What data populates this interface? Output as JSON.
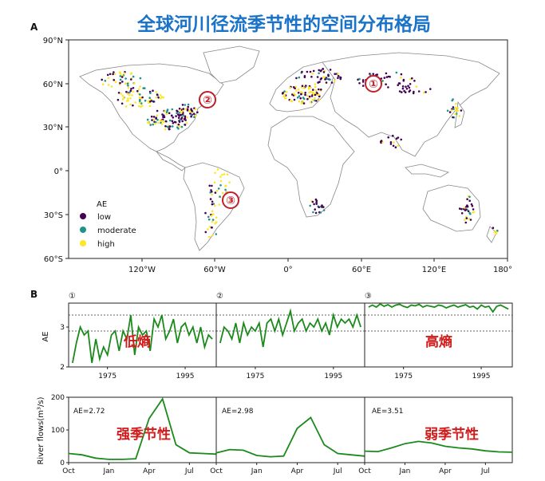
{
  "title": "全球河川径流季节性的空间分布格局",
  "panel_a": "A",
  "panel_b": "B",
  "colors": {
    "low": "#440154",
    "moderate": "#21918c",
    "high": "#fde725",
    "line": "#1a8a1a",
    "title": "#1a73c8",
    "annot": "#d11a1a"
  },
  "map": {
    "lat_ticks": [
      "90°N",
      "60°N",
      "30°N",
      "0°",
      "30°S",
      "60°S"
    ],
    "lon_ticks": [
      "120°W",
      "60°W",
      "0°",
      "60°E",
      "120°E",
      "180°"
    ],
    "markers": [
      "①",
      "②",
      "③"
    ],
    "legend": {
      "title": "AE",
      "items": [
        "low",
        "moderate",
        "high"
      ]
    }
  },
  "chart_data": [
    {
      "type": "line",
      "panel": "①",
      "ylabel": "AE",
      "ylim": [
        2,
        3.6
      ],
      "yticks": [
        2,
        3
      ],
      "xlim": [
        1965,
        2003
      ],
      "xticks": [
        "1975",
        "1995"
      ],
      "reference_lines": [
        3.3,
        2.9
      ],
      "annotation": "低熵",
      "series": [
        {
          "x": [
            1966,
            1967,
            1968,
            1969,
            1970,
            1971,
            1972,
            1973,
            1974,
            1975,
            1976,
            1977,
            1978,
            1979,
            1980,
            1981,
            1982,
            1983,
            1984,
            1985,
            1986,
            1987,
            1988,
            1989,
            1990,
            1991,
            1992,
            1993,
            1994,
            1995,
            1996,
            1997,
            1998,
            1999,
            2000,
            2001,
            2002
          ],
          "values": [
            2.1,
            2.6,
            3.0,
            2.8,
            2.9,
            2.1,
            2.7,
            2.2,
            2.5,
            2.3,
            2.8,
            2.9,
            2.4,
            2.9,
            2.7,
            3.3,
            2.3,
            3.0,
            2.8,
            2.9,
            2.4,
            3.2,
            3.0,
            3.3,
            2.7,
            2.9,
            3.2,
            2.6,
            3.0,
            3.1,
            2.8,
            3.0,
            2.6,
            3.0,
            2.5,
            2.8,
            2.7
          ]
        }
      ]
    },
    {
      "type": "line",
      "panel": "②",
      "ylim": [
        2,
        3.6
      ],
      "xlim": [
        1965,
        2003
      ],
      "xticks": [
        "1975",
        "1995"
      ],
      "reference_lines": [
        3.3,
        2.9
      ],
      "series": [
        {
          "x": [
            1966,
            1967,
            1968,
            1969,
            1970,
            1971,
            1972,
            1973,
            1974,
            1975,
            1976,
            1977,
            1978,
            1979,
            1980,
            1981,
            1982,
            1983,
            1984,
            1985,
            1986,
            1987,
            1988,
            1989,
            1990,
            1991,
            1992,
            1993,
            1994,
            1995,
            1996,
            1997,
            1998,
            1999,
            2000,
            2001,
            2002
          ],
          "values": [
            2.6,
            3.0,
            2.9,
            2.7,
            3.1,
            2.6,
            3.1,
            2.8,
            3.0,
            2.9,
            3.1,
            2.5,
            3.1,
            3.2,
            2.9,
            3.2,
            2.8,
            3.1,
            3.4,
            2.9,
            3.1,
            3.2,
            2.9,
            3.1,
            3.0,
            3.2,
            2.9,
            3.1,
            2.8,
            3.3,
            3.0,
            3.2,
            3.1,
            3.2,
            3.0,
            3.3,
            3.0
          ]
        }
      ]
    },
    {
      "type": "line",
      "panel": "③",
      "ylim": [
        2,
        3.6
      ],
      "xlim": [
        1965,
        2003
      ],
      "xticks": [
        "1975",
        "1995"
      ],
      "reference_lines": [
        3.3,
        2.9
      ],
      "annotation": "高熵",
      "series": [
        {
          "x": [
            1966,
            1967,
            1968,
            1969,
            1970,
            1971,
            1972,
            1973,
            1974,
            1975,
            1976,
            1977,
            1978,
            1979,
            1980,
            1981,
            1982,
            1983,
            1984,
            1985,
            1986,
            1987,
            1988,
            1989,
            1990,
            1991,
            1992,
            1993,
            1994,
            1995,
            1996,
            1997,
            1998,
            1999,
            2000,
            2001,
            2002
          ],
          "values": [
            3.5,
            3.55,
            3.5,
            3.58,
            3.52,
            3.56,
            3.5,
            3.55,
            3.57,
            3.52,
            3.49,
            3.55,
            3.53,
            3.57,
            3.5,
            3.54,
            3.52,
            3.5,
            3.55,
            3.53,
            3.48,
            3.52,
            3.55,
            3.5,
            3.53,
            3.56,
            3.5,
            3.52,
            3.45,
            3.55,
            3.5,
            3.52,
            3.38,
            3.52,
            3.55,
            3.5,
            3.45
          ]
        }
      ]
    },
    {
      "type": "line",
      "panel": "①",
      "ylabel": "River flows(m³/s)",
      "ylim": [
        0,
        200
      ],
      "yticks": [
        0,
        100,
        200
      ],
      "months": [
        "Oct",
        "Nov",
        "Dec",
        "Jan",
        "Feb",
        "Mar",
        "Apr",
        "May",
        "Jun",
        "Jul",
        "Aug",
        "Sep"
      ],
      "xticks": [
        "Oct",
        "Jan",
        "Apr",
        "Jul"
      ],
      "label": "AE=2.72",
      "annotation": "强季节性",
      "series": [
        {
          "values": [
            28,
            24,
            14,
            10,
            10,
            12,
            135,
            195,
            55,
            30,
            28,
            26
          ]
        }
      ]
    },
    {
      "type": "line",
      "panel": "②",
      "ylim": [
        0,
        200
      ],
      "months": [
        "Oct",
        "Nov",
        "Dec",
        "Jan",
        "Feb",
        "Mar",
        "Apr",
        "May",
        "Jun",
        "Jul",
        "Aug",
        "Sep"
      ],
      "xticks": [
        "Oct",
        "Jan",
        "Apr",
        "Jul"
      ],
      "label": "AE=2.98",
      "series": [
        {
          "values": [
            30,
            40,
            38,
            22,
            18,
            20,
            105,
            138,
            55,
            28,
            24,
            20
          ]
        }
      ]
    },
    {
      "type": "line",
      "panel": "③",
      "ylim": [
        0,
        200
      ],
      "months": [
        "Oct",
        "Nov",
        "Dec",
        "Jan",
        "Feb",
        "Mar",
        "Apr",
        "May",
        "Jun",
        "Jul",
        "Aug",
        "Sep"
      ],
      "xticks": [
        "Oct",
        "Jan",
        "Apr",
        "Jul"
      ],
      "label": "AE=3.51",
      "annotation": "弱季节性",
      "series": [
        {
          "values": [
            35,
            34,
            45,
            58,
            65,
            60,
            50,
            45,
            42,
            36,
            33,
            32
          ]
        }
      ]
    }
  ]
}
